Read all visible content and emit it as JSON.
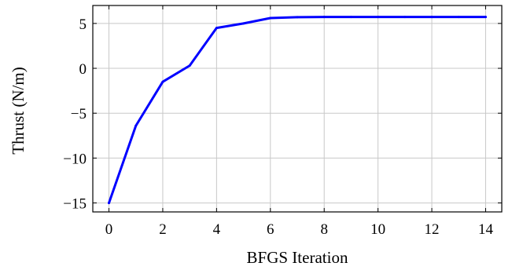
{
  "chart_data": {
    "type": "line",
    "title": "",
    "xlabel": "BFGS Iteration",
    "ylabel": "Thrust (N/m)",
    "xlim": [
      -0.6,
      14.6
    ],
    "ylim": [
      -16,
      7
    ],
    "xticks": [
      0,
      2,
      4,
      6,
      8,
      10,
      12,
      14
    ],
    "yticks": [
      5,
      0,
      -5,
      -10,
      -15
    ],
    "xtick_labels": [
      "0",
      "2",
      "4",
      "6",
      "8",
      "10",
      "12",
      "14"
    ],
    "ytick_labels": [
      "5",
      "0",
      "−5",
      "−10",
      "−15"
    ],
    "grid": true,
    "legend": "none",
    "series": [
      {
        "color": "#0000ff",
        "x": [
          0,
          1,
          2,
          3,
          4,
          5,
          6,
          7,
          8,
          9,
          10,
          11,
          12,
          13,
          14
        ],
        "y": [
          -15.0,
          -6.4,
          -1.5,
          0.3,
          4.5,
          5.0,
          5.6,
          5.7,
          5.72,
          5.72,
          5.72,
          5.72,
          5.72,
          5.72,
          5.72
        ]
      }
    ]
  }
}
